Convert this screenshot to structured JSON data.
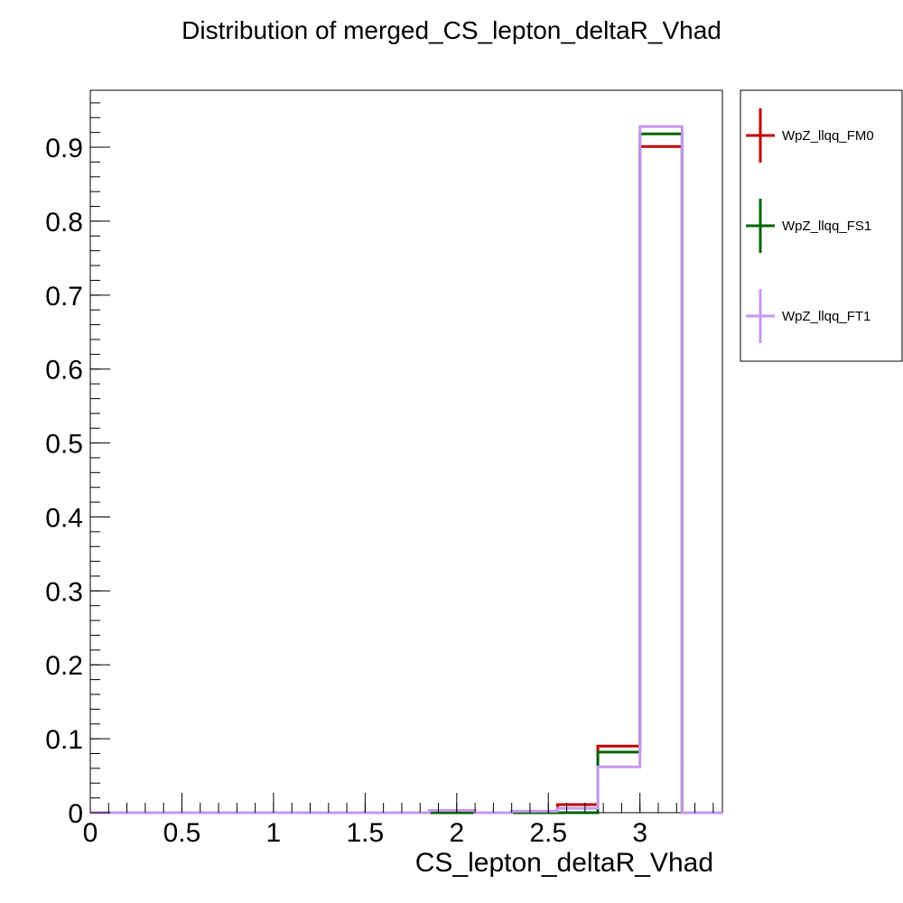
{
  "chart_data": {
    "type": "histogram",
    "title": "Distribution of merged_CS_lepton_deltaR_Vhad",
    "xlabel": "CS_lepton_deltaR_Vhad",
    "ylabel": "",
    "xlim": [
      0,
      3.45
    ],
    "ylim": [
      0,
      0.977
    ],
    "grid": false,
    "legend_position": "top-right, outside plot",
    "x_ticks": [
      "0",
      "0.5",
      "1",
      "1.5",
      "2",
      "2.5",
      "3"
    ],
    "x_tick_values": [
      0,
      0.5,
      1,
      1.5,
      2,
      2.5,
      3
    ],
    "y_ticks": [
      "0",
      "0.1",
      "0.2",
      "0.3",
      "0.4",
      "0.5",
      "0.6",
      "0.7",
      "0.8",
      "0.9"
    ],
    "y_tick_values": [
      0,
      0.1,
      0.2,
      0.3,
      0.4,
      0.5,
      0.6,
      0.7,
      0.8,
      0.9
    ],
    "bin_edges": [
      1.85,
      2.1,
      2.3,
      2.55,
      2.77,
      3.0,
      3.23
    ],
    "series": [
      {
        "name": "WpZ_llqq_FM0",
        "color": "#c00000",
        "values": [
          0.0,
          0.0,
          0.001,
          0.011,
          0.09,
          0.901
        ]
      },
      {
        "name": "WpZ_llqq_FS1",
        "color": "#006400",
        "values": [
          0.0,
          0.0,
          0.0,
          0.0,
          0.082,
          0.918
        ]
      },
      {
        "name": "WpZ_llqq_FT1",
        "color": "#c896f0",
        "values": [
          0.003,
          0.0,
          0.002,
          0.006,
          0.062,
          0.928
        ]
      }
    ]
  }
}
